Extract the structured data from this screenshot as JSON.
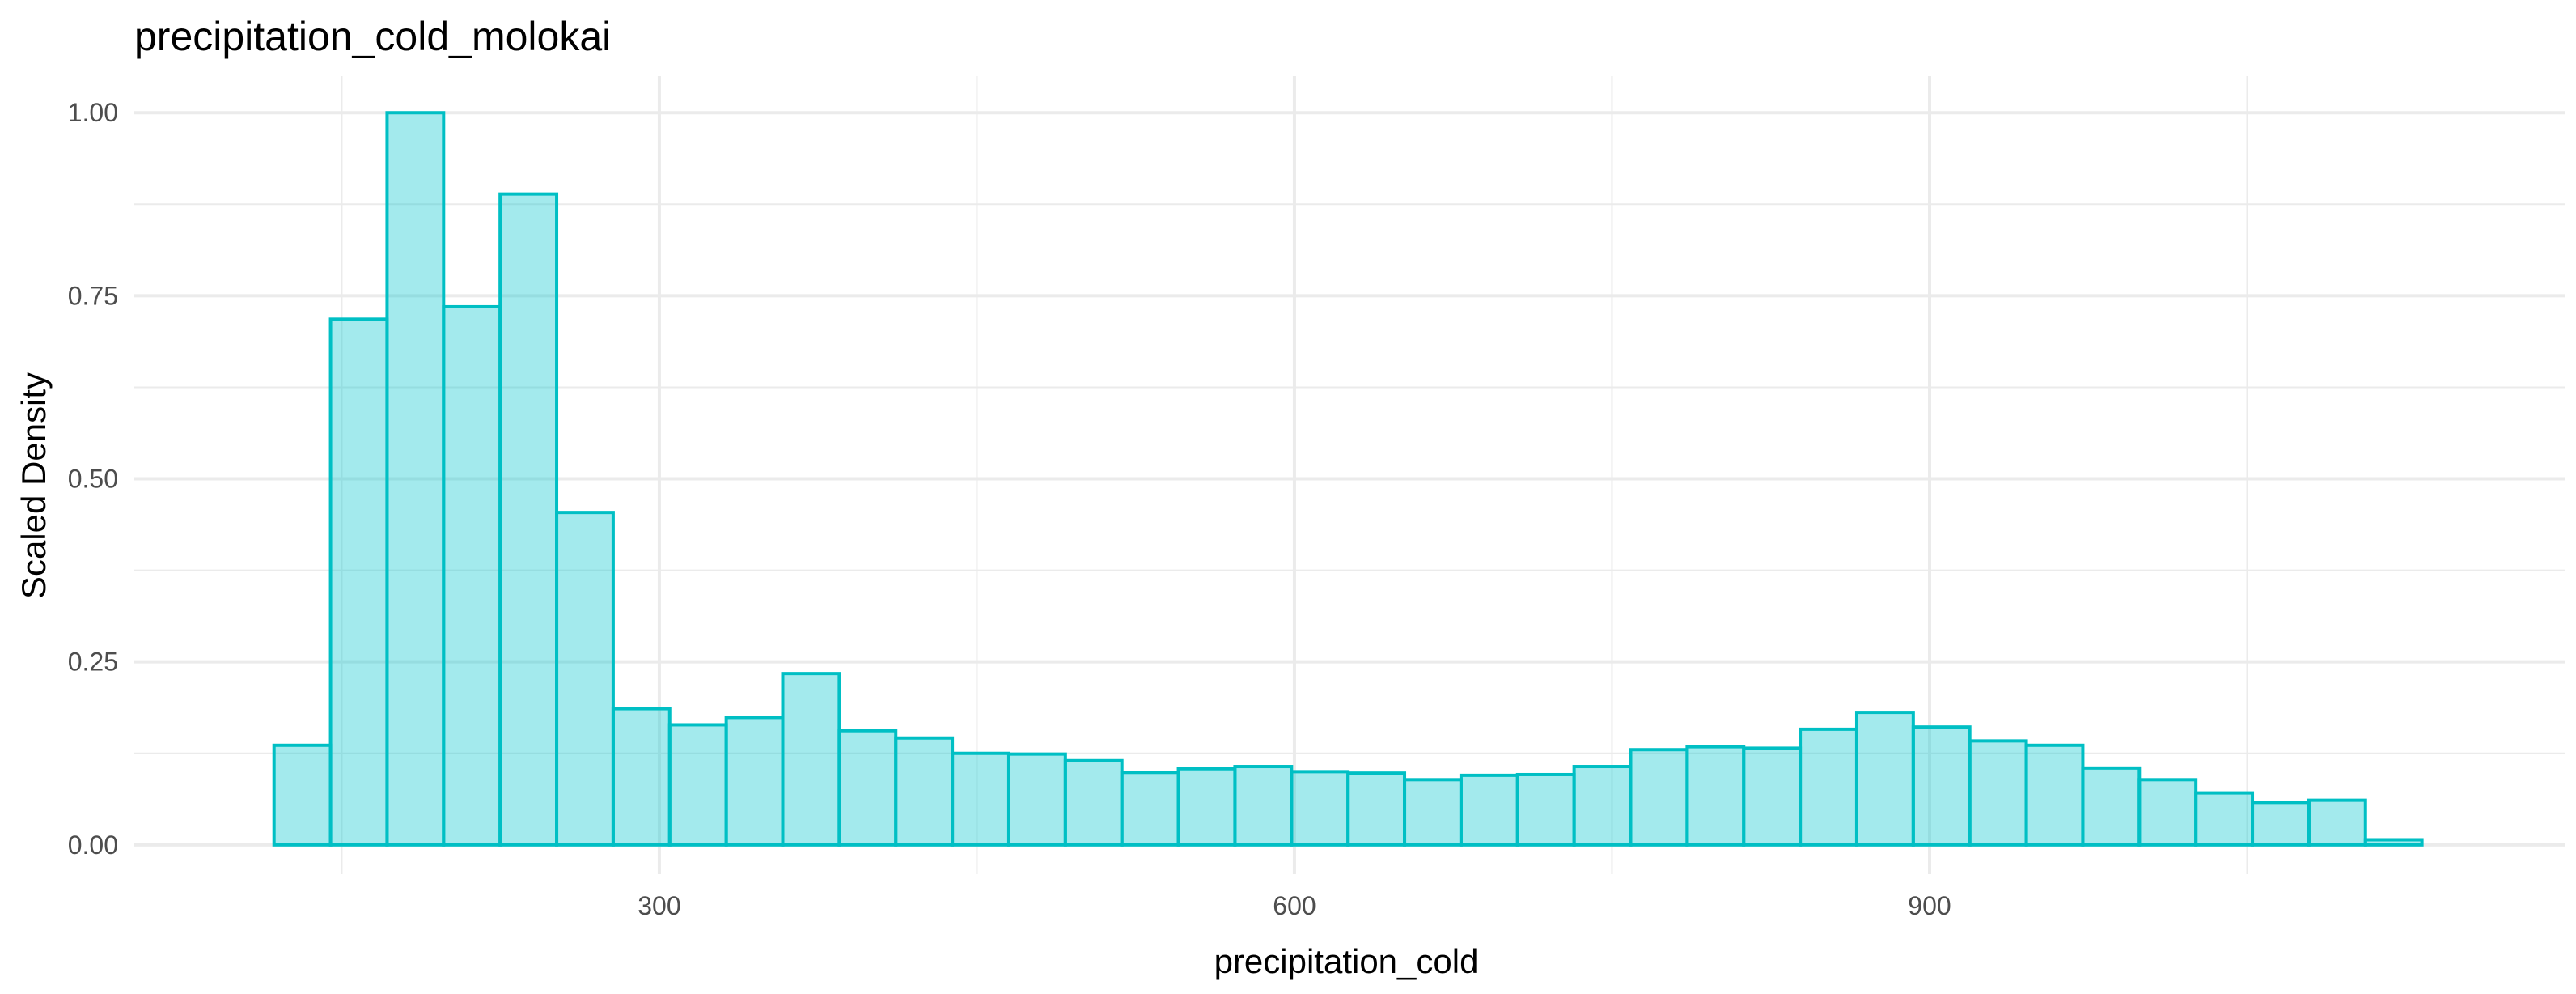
{
  "chart_data": {
    "type": "bar",
    "title": "precipitation_cold_molokai",
    "xlabel": "precipitation_cold",
    "ylabel": "Scaled Density",
    "xlim": [
      52,
      1200
    ],
    "ylim": [
      -0.04,
      1.05
    ],
    "x_ticks": [
      300,
      600,
      900
    ],
    "x_tick_labels": [
      "300",
      "600",
      "900"
    ],
    "x_minor_ticks": [
      150,
      450,
      750,
      1050
    ],
    "y_ticks": [
      0,
      0.25,
      0.5,
      0.75,
      1.0
    ],
    "y_tick_labels": [
      "0.00",
      "0.25",
      "0.50",
      "0.75",
      "1.00"
    ],
    "y_minor_ticks": [
      0.125,
      0.375,
      0.625,
      0.875
    ],
    "grid": true,
    "colors": {
      "fill": "#00c4cc",
      "outline": "#00bfc4"
    },
    "bin_width": 26.7,
    "bins_start": 118,
    "values": [
      0.136,
      0.718,
      1.0,
      0.735,
      0.889,
      0.454,
      0.186,
      0.164,
      0.174,
      0.234,
      0.156,
      0.146,
      0.125,
      0.124,
      0.115,
      0.099,
      0.104,
      0.107,
      0.1,
      0.098,
      0.089,
      0.095,
      0.096,
      0.107,
      0.13,
      0.134,
      0.132,
      0.158,
      0.181,
      0.161,
      0.142,
      0.136,
      0.105,
      0.089,
      0.071,
      0.058,
      0.061,
      0.007
    ]
  }
}
